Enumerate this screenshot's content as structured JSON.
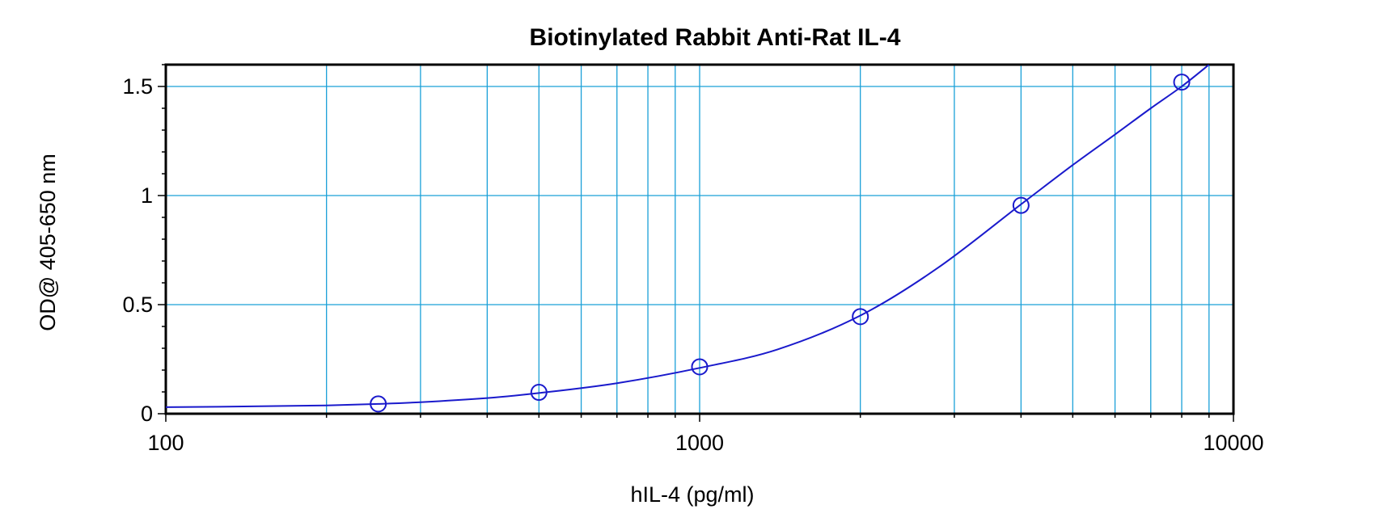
{
  "chart_data": {
    "type": "scatter",
    "title": "Biotinylated Rabbit Anti-Rat IL-4",
    "xlabel": "hIL-4 (pg/ml)",
    "ylabel": "OD@ 405-650 nm",
    "x_scale": "log",
    "xlim": [
      100,
      10000
    ],
    "ylim": [
      0,
      1.6
    ],
    "x_ticks": [
      100,
      1000,
      10000
    ],
    "x_tick_labels": [
      "100",
      "1000",
      "10000"
    ],
    "y_ticks": [
      0,
      0.5,
      1,
      1.5
    ],
    "y_tick_labels": [
      "0",
      "0.5",
      "1",
      "1.5"
    ],
    "grid": true,
    "series": [
      {
        "x": [
          250,
          500,
          1000,
          2000,
          4000,
          8000
        ],
        "y": [
          0.045,
          0.098,
          0.215,
          0.445,
          0.955,
          1.52
        ],
        "marker": "open-circle",
        "fit_curve": true
      }
    ],
    "fit_curve_points": {
      "x": [
        100,
        150,
        200,
        250,
        300,
        400,
        500,
        700,
        1000,
        1400,
        2000,
        2800,
        4000,
        5000,
        6000,
        7000,
        8000,
        9000
      ],
      "y": [
        0.03,
        0.034,
        0.038,
        0.045,
        0.053,
        0.072,
        0.095,
        0.14,
        0.21,
        0.295,
        0.45,
        0.67,
        0.96,
        1.14,
        1.28,
        1.4,
        1.5,
        1.6
      ]
    },
    "colors": {
      "grid": "#1aa0d8",
      "series": "#1a1acc",
      "frame": "#000000"
    }
  }
}
